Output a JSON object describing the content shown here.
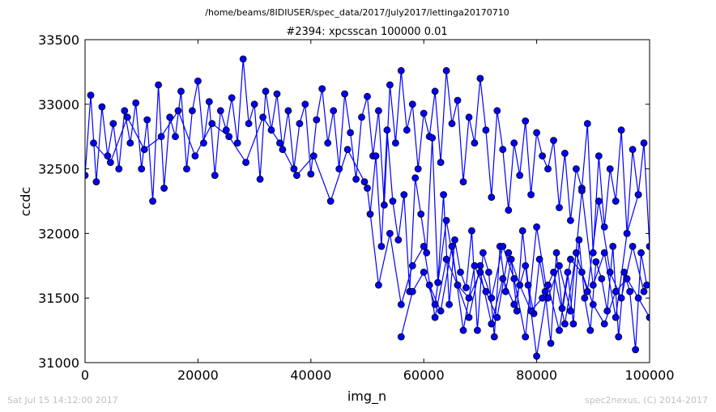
{
  "figure": {
    "path_title": "/home/beams/8IDIUSER/spec_data/2017/July2017/lettinga20170710",
    "footer_left": "Sat Jul 15 14:12:00 2017",
    "footer_right": "spec2nexus, (C) 2014-2017"
  },
  "colors": {
    "series": "#0000ff",
    "marker_edge": "#000000",
    "axes": "#000000"
  },
  "chart_data": {
    "type": "line",
    "title": "#2394: xpcsscan 100000 0.01",
    "xlabel": "img_n",
    "ylabel": "ccdc",
    "xlim": [
      0,
      100000
    ],
    "ylim": [
      31000,
      33500
    ],
    "xticks": [
      0,
      20000,
      40000,
      60000,
      80000,
      100000
    ],
    "xtick_labels": [
      "0",
      "20000",
      "40000",
      "60000",
      "80000",
      "100000"
    ],
    "yticks": [
      31000,
      31500,
      32000,
      32500,
      33000,
      33500
    ],
    "ytick_labels": [
      "31000",
      "31500",
      "32000",
      "32500",
      "33000",
      "33500"
    ],
    "grid": false,
    "marker": "circle",
    "series": [
      {
        "x": [
          0,
          1000,
          2000,
          3000,
          4000,
          5000,
          6000,
          7000,
          8000,
          9000,
          10000,
          11000,
          12000,
          13000,
          14000,
          15000,
          16000,
          17000,
          18000,
          19000,
          20000,
          21000,
          22000,
          23000,
          24000,
          25000,
          26000,
          27000,
          28000,
          29000,
          30000,
          31000,
          32000,
          33000,
          34000,
          35000,
          36000,
          37000,
          38000,
          39000,
          40000,
          41000,
          42000,
          43000,
          44000,
          45000,
          46000,
          47000,
          48000,
          49000,
          50000,
          51000,
          52000,
          53000,
          54000,
          55000,
          56000,
          57000,
          58000,
          59000,
          60000,
          61000,
          62000,
          63000,
          64000,
          65000,
          66000,
          67000,
          68000,
          69000,
          70000,
          71000,
          72000,
          73000,
          74000,
          75000,
          76000,
          77000,
          78000,
          79000,
          80000,
          81000,
          82000,
          83000,
          84000,
          85000,
          86000,
          87000,
          88000,
          89000,
          90000,
          91000,
          92000,
          93000,
          94000,
          95000,
          96000,
          97000,
          98000,
          99000,
          100000
        ],
        "y": [
          32450,
          33070,
          32400,
          32980,
          32600,
          32850,
          32500,
          32950,
          32700,
          33010,
          32500,
          32880,
          32250,
          33150,
          32350,
          32900,
          32750,
          33100,
          32500,
          32950,
          33180,
          32700,
          33020,
          32450,
          32950,
          32800,
          33050,
          32700,
          33350,
          32850,
          33000,
          32420,
          33100,
          32800,
          33080,
          32650,
          32950,
          32500,
          32850,
          33000,
          32460,
          32880,
          33120,
          32700,
          32950,
          32500,
          33080,
          32780,
          32420,
          32900,
          33060,
          32600,
          32950,
          32220,
          33150,
          32700,
          33260,
          32800,
          33000,
          32500,
          32930,
          32750,
          33100,
          32550,
          33260,
          32850,
          33030,
          32400,
          32900,
          32700,
          33200,
          32800,
          32280,
          32950,
          32650,
          32180,
          32700,
          32450,
          32870,
          32300,
          32780,
          32600,
          32500,
          32720,
          32200,
          32620,
          32100,
          32500,
          32350,
          32850,
          31850,
          32600,
          32050,
          32500,
          32250,
          32800,
          32000,
          32650,
          32300,
          32700,
          31900
        ]
      },
      {
        "x": [
          50500,
          51500,
          52500,
          53500,
          54500,
          55500,
          56500,
          57500,
          58500,
          59500,
          60500,
          61500,
          62500,
          63500,
          64500,
          65500,
          66500,
          67500,
          68500,
          69500,
          70500,
          71500,
          72500,
          73500,
          74500,
          75500,
          76500,
          77500,
          78500,
          79500,
          80500,
          81500,
          82500,
          83500,
          84500,
          85500,
          86500,
          87500,
          88500,
          89500,
          90500,
          91500,
          92500,
          93500,
          94500,
          95500,
          96500,
          97500,
          98500,
          99500
        ],
        "y": [
          32150,
          32600,
          31900,
          32800,
          32250,
          31950,
          32300,
          31550,
          32430,
          32150,
          31850,
          32740,
          31620,
          32300,
          31450,
          31950,
          31700,
          31580,
          32020,
          31250,
          31850,
          31700,
          31200,
          31900,
          31550,
          31800,
          31400,
          32020,
          31600,
          31380,
          31800,
          31550,
          31150,
          31850,
          31420,
          31700,
          31300,
          31950,
          31500,
          31250,
          31780,
          31650,
          31400,
          31900,
          31200,
          31700,
          31550,
          31100,
          31850,
          31600
        ]
      },
      {
        "x": [
          50000,
          52000,
          54000,
          56000,
          58000,
          60000,
          62000,
          64000,
          66000,
          68000,
          70000,
          72000,
          74000,
          76000,
          78000,
          80000,
          82000,
          84000,
          86000,
          88000,
          90000,
          92000,
          94000,
          96000,
          98000,
          100000
        ],
        "y": [
          32350,
          31600,
          32000,
          31450,
          31750,
          31900,
          31350,
          31800,
          31600,
          31500,
          31700,
          31300,
          31650,
          31450,
          31750,
          31050,
          31600,
          31250,
          31800,
          31700,
          31450,
          31300,
          31550,
          31650,
          31500,
          31350
        ]
      },
      {
        "x": [
          56000,
          58000,
          60000,
          62000,
          64000,
          66000,
          68000,
          70000,
          72000,
          74000,
          76000,
          78000,
          80000,
          82000,
          84000,
          86000,
          88000,
          90000,
          92000,
          94000,
          96000,
          98000
        ],
        "y": [
          31200,
          31550,
          31700,
          31450,
          32100,
          31600,
          31350,
          31750,
          31500,
          31900,
          31650,
          31200,
          32050,
          31500,
          31750,
          31400,
          32330,
          31600,
          31850,
          31350,
          32000,
          32300
        ]
      },
      {
        "x": [
          61000,
          63000,
          65000,
          67000,
          69000,
          71000,
          73000,
          75000,
          77000,
          79000,
          81000,
          83000,
          85000,
          87000,
          89000,
          91000,
          93000,
          95000,
          97000,
          99000
        ],
        "y": [
          31600,
          31400,
          31900,
          31250,
          31750,
          31550,
          31350,
          31850,
          31600,
          31400,
          31500,
          31700,
          31300,
          31850,
          31550,
          32250,
          31700,
          31500,
          31900,
          31550
        ]
      },
      {
        "x": [
          1500,
          4500,
          7500,
          10500,
          13500,
          16500,
          19500,
          22500,
          25500,
          28500,
          31500,
          34500,
          37500,
          40500,
          43500,
          46500,
          49500
        ],
        "y": [
          32700,
          32550,
          32900,
          32650,
          32750,
          32950,
          32600,
          32850,
          32750,
          32550,
          32900,
          32700,
          32450,
          32600,
          32250,
          32650,
          32400
        ]
      }
    ]
  }
}
